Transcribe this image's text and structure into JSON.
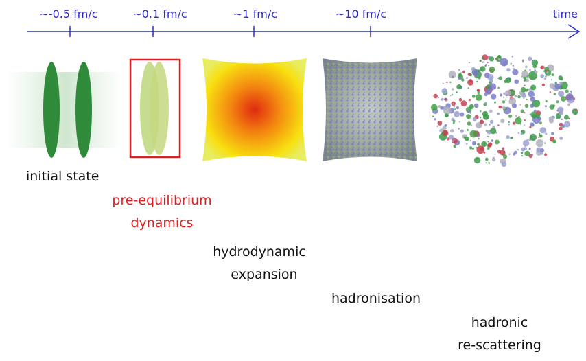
{
  "timeline": {
    "ticks": [
      "∼-0.5 fm/c",
      "∼0.1 fm/c",
      "∼1 fm/c",
      "∼10 fm/c"
    ],
    "axis_label": "time"
  },
  "stages": [
    {
      "lines": [
        "initial state"
      ]
    },
    {
      "lines": [
        "pre-equilibrium",
        "dynamics"
      ]
    },
    {
      "lines": [
        "hydrodynamic",
        "expansion"
      ]
    },
    {
      "lines": [
        "hadronisation"
      ]
    },
    {
      "lines": [
        "hadronic",
        "re-scattering"
      ]
    }
  ]
}
